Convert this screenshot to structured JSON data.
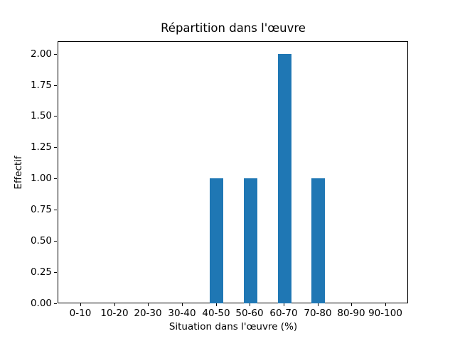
{
  "chart_data": {
    "type": "bar",
    "title": "Répartition dans l'œuvre",
    "xlabel": "Situation dans l'œuvre (%)",
    "ylabel": "Effectif",
    "categories": [
      "0-10",
      "10-20",
      "20-30",
      "30-40",
      "40-50",
      "50-60",
      "60-70",
      "70-80",
      "80-90",
      "90-100"
    ],
    "values": [
      0,
      0,
      0,
      0,
      1,
      1,
      2,
      1,
      0,
      0
    ],
    "ytick_labels": [
      "0.00",
      "0.25",
      "0.50",
      "0.75",
      "1.00",
      "1.25",
      "1.50",
      "1.75",
      "2.00"
    ],
    "ytick_values": [
      0,
      0.25,
      0.5,
      0.75,
      1.0,
      1.25,
      1.5,
      1.75,
      2.0
    ],
    "ylim": [
      0,
      2.1
    ],
    "x_edge_pad": 0.67,
    "bar_width_units": 0.4,
    "bar_color": "#1f77b4",
    "axis_color": "#000000",
    "background_color": "#ffffff",
    "grid": false,
    "legend": null
  }
}
